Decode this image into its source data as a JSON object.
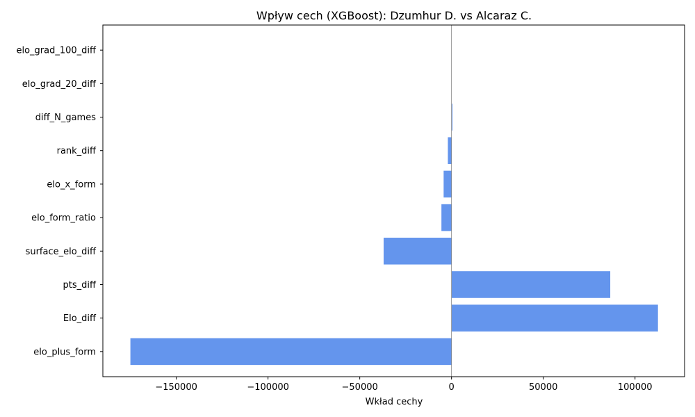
{
  "chart_data": {
    "type": "bar",
    "orientation": "horizontal",
    "title": "Wpływ cech (XGBoost): Dzumhur D. vs Alcaraz C.",
    "xlabel": "Wkład cechy",
    "ylabel": "",
    "categories": [
      "elo_plus_form",
      "Elo_diff",
      "pts_diff",
      "surface_elo_diff",
      "elo_form_ratio",
      "elo_x_form",
      "rank_diff",
      "diff_N_games",
      "elo_grad_20_diff",
      "elo_grad_100_diff"
    ],
    "values": [
      -175000,
      112500,
      86500,
      -37000,
      -5500,
      -4300,
      -2000,
      500,
      0,
      0
    ],
    "xlim": [
      -190000,
      127000
    ],
    "xticks": [
      -150000,
      -100000,
      -50000,
      0,
      50000,
      100000
    ],
    "xtick_labels": [
      "−150000",
      "−100000",
      "−50000",
      "0",
      "50000",
      "100000"
    ],
    "bar_color": "#6495ED",
    "zero_line_color": "#808080",
    "grid": false,
    "legend": "none"
  }
}
